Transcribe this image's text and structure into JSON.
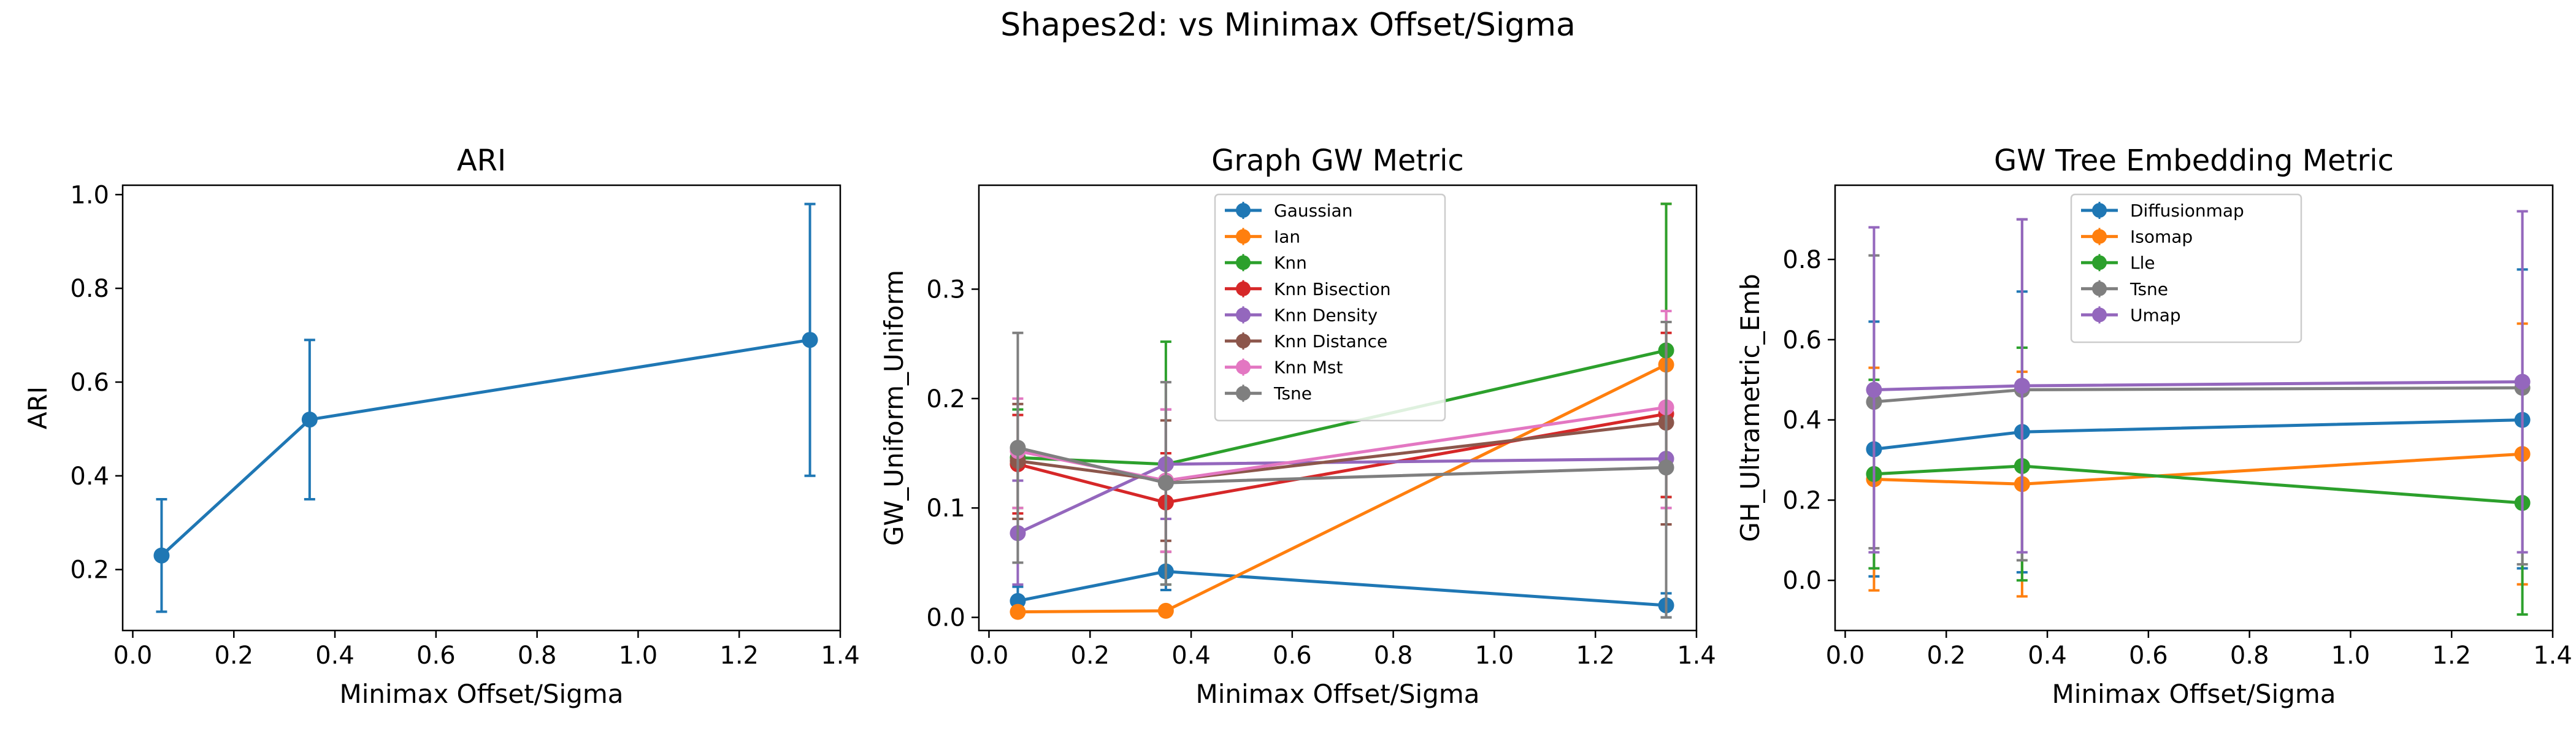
{
  "figure": {
    "suptitle": "Shapes2d: vs Minimax Offset/Sigma"
  },
  "colors": {
    "Gaussian": "#1f77b4",
    "Ian": "#ff7f0e",
    "Knn": "#2ca02c",
    "Knn Bisection": "#d62728",
    "Knn Density": "#9467bd",
    "Knn Distance": "#8c564b",
    "Knn Mst": "#e377c2",
    "Tsne": "#7f7f7f",
    "Diffusionmap": "#1f77b4",
    "Isomap": "#ff7f0e",
    "Lle": "#2ca02c",
    "Umap": "#9467bd"
  },
  "chart_data": [
    {
      "type": "line",
      "title": "ARI",
      "xlabel": "Minimax Offset/Sigma",
      "ylabel": "ARI",
      "xlim": [
        -0.02,
        1.4
      ],
      "ylim": [
        0.07,
        1.02
      ],
      "xticks": [
        0.0,
        0.2,
        0.4,
        0.6,
        0.8,
        1.0,
        1.2,
        1.4
      ],
      "yticks": [
        0.2,
        0.4,
        0.6,
        0.8,
        1.0
      ],
      "tick_decimals": 1,
      "legend": null,
      "x": [
        0.057,
        0.35,
        1.34
      ],
      "series": [
        {
          "name": "",
          "values": [
            0.23,
            0.52,
            0.69
          ],
          "err_lo": [
            0.11,
            0.35,
            0.4
          ],
          "err_hi": [
            0.35,
            0.69,
            0.98
          ]
        }
      ]
    },
    {
      "type": "line",
      "title": "Graph GW Metric",
      "xlabel": "Minimax Offset/Sigma",
      "ylabel": "GW_Uniform_Uniform",
      "xlim": [
        -0.02,
        1.4
      ],
      "ylim": [
        -0.012,
        0.395
      ],
      "xticks": [
        0.0,
        0.2,
        0.4,
        0.6,
        0.8,
        1.0,
        1.2,
        1.4
      ],
      "yticks": [
        0.0,
        0.1,
        0.2,
        0.3
      ],
      "tick_decimals": 1,
      "legend": "upper-center",
      "x": [
        0.057,
        0.35,
        1.34
      ],
      "series": [
        {
          "name": "Gaussian",
          "values": [
            0.015,
            0.042,
            0.011
          ],
          "err_lo": [
            0.003,
            0.025,
            0.0
          ],
          "err_hi": [
            0.028,
            0.06,
            0.022
          ]
        },
        {
          "name": "Ian",
          "values": [
            0.005,
            0.006,
            0.231
          ],
          "err_lo": [
            0.003,
            0.004,
            0.085
          ],
          "err_hi": [
            0.007,
            0.008,
            0.378
          ]
        },
        {
          "name": "Knn",
          "values": [
            0.146,
            0.14,
            0.244
          ],
          "err_lo": [
            0.1,
            0.03,
            0.11
          ],
          "err_hi": [
            0.19,
            0.252,
            0.378
          ]
        },
        {
          "name": "Knn Bisection",
          "values": [
            0.14,
            0.105,
            0.186
          ],
          "err_lo": [
            0.095,
            0.06,
            0.11
          ],
          "err_hi": [
            0.185,
            0.15,
            0.26
          ]
        },
        {
          "name": "Knn Density",
          "values": [
            0.077,
            0.14,
            0.145
          ],
          "err_lo": [
            0.03,
            0.09,
            0.1
          ],
          "err_hi": [
            0.125,
            0.19,
            0.19
          ]
        },
        {
          "name": "Knn Distance",
          "values": [
            0.143,
            0.125,
            0.178
          ],
          "err_lo": [
            0.09,
            0.07,
            0.085
          ],
          "err_hi": [
            0.195,
            0.18,
            0.27
          ]
        },
        {
          "name": "Knn Mst",
          "values": [
            0.152,
            0.125,
            0.192
          ],
          "err_lo": [
            0.1,
            0.06,
            0.1
          ],
          "err_hi": [
            0.2,
            0.19,
            0.28
          ]
        },
        {
          "name": "Tsne",
          "values": [
            0.155,
            0.123,
            0.137
          ],
          "err_lo": [
            0.05,
            0.03,
            0.0
          ],
          "err_hi": [
            0.26,
            0.215,
            0.27
          ]
        }
      ]
    },
    {
      "type": "line",
      "title": "GW Tree Embedding Metric",
      "xlabel": "Minimax Offset/Sigma",
      "ylabel": "GH_Ultrametric_Emb",
      "xlim": [
        -0.02,
        1.4
      ],
      "ylim": [
        -0.125,
        0.985
      ],
      "xticks": [
        0.0,
        0.2,
        0.4,
        0.6,
        0.8,
        1.0,
        1.2,
        1.4
      ],
      "yticks": [
        0.0,
        0.2,
        0.4,
        0.6,
        0.8
      ],
      "tick_decimals": 1,
      "legend": "upper-center",
      "x": [
        0.057,
        0.35,
        1.34
      ],
      "series": [
        {
          "name": "Diffusionmap",
          "values": [
            0.327,
            0.37,
            0.4
          ],
          "err_lo": [
            0.01,
            0.02,
            0.03
          ],
          "err_hi": [
            0.645,
            0.72,
            0.775
          ]
        },
        {
          "name": "Isomap",
          "values": [
            0.252,
            0.24,
            0.315
          ],
          "err_lo": [
            -0.025,
            -0.04,
            -0.01
          ],
          "err_hi": [
            0.53,
            0.52,
            0.64
          ]
        },
        {
          "name": "Lle",
          "values": [
            0.265,
            0.285,
            0.193
          ],
          "err_lo": [
            0.03,
            0.0,
            -0.085
          ],
          "err_hi": [
            0.5,
            0.58,
            0.47
          ]
        },
        {
          "name": "Tsne",
          "values": [
            0.445,
            0.475,
            0.48
          ],
          "err_lo": [
            0.08,
            0.05,
            0.04
          ],
          "err_hi": [
            0.81,
            0.9,
            0.92
          ]
        },
        {
          "name": "Umap",
          "values": [
            0.475,
            0.485,
            0.495
          ],
          "err_lo": [
            0.07,
            0.07,
            0.07
          ],
          "err_hi": [
            0.88,
            0.9,
            0.92
          ]
        }
      ]
    }
  ]
}
